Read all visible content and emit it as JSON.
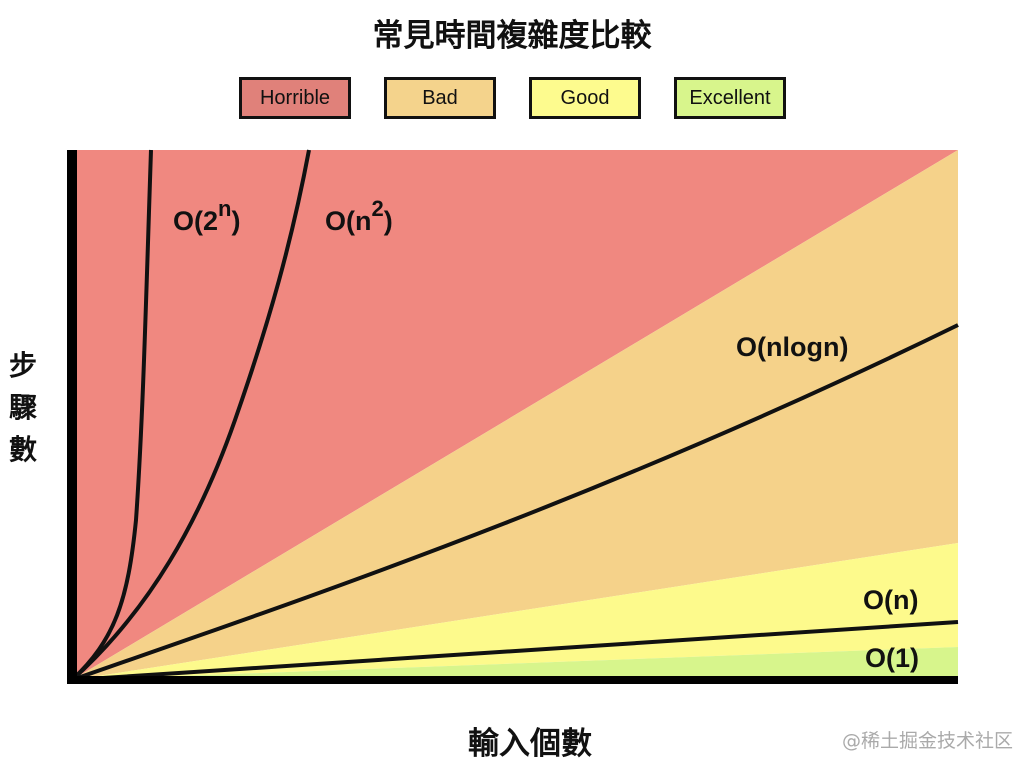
{
  "chart_data": {
    "type": "line",
    "title": "常見時間複雜度比較",
    "xlabel": "輸入個數",
    "ylabel": "步驟數",
    "legend": [
      {
        "label": "Horrible",
        "color": "#e0817a"
      },
      {
        "label": "Bad",
        "color": "#f4d38c"
      },
      {
        "label": "Good",
        "color": "#fdfb8e"
      },
      {
        "label": "Excellent",
        "color": "#d8f58c"
      }
    ],
    "legend_placement": "top",
    "region_colors": {
      "horrible": "#f08880",
      "bad": "#f5d28a",
      "good": "#fdfa8c",
      "excellent": "#d7f58c"
    },
    "series": [
      {
        "name": "O(2",
        "sup": "n",
        "close": ")"
      },
      {
        "name": "O(n",
        "sup": "2",
        "close": ")"
      },
      {
        "name": "O(nlogn)"
      },
      {
        "name": "O(n)"
      },
      {
        "name": "O(1)"
      }
    ],
    "grid": false
  },
  "watermark": "@稀土掘金技术社区"
}
